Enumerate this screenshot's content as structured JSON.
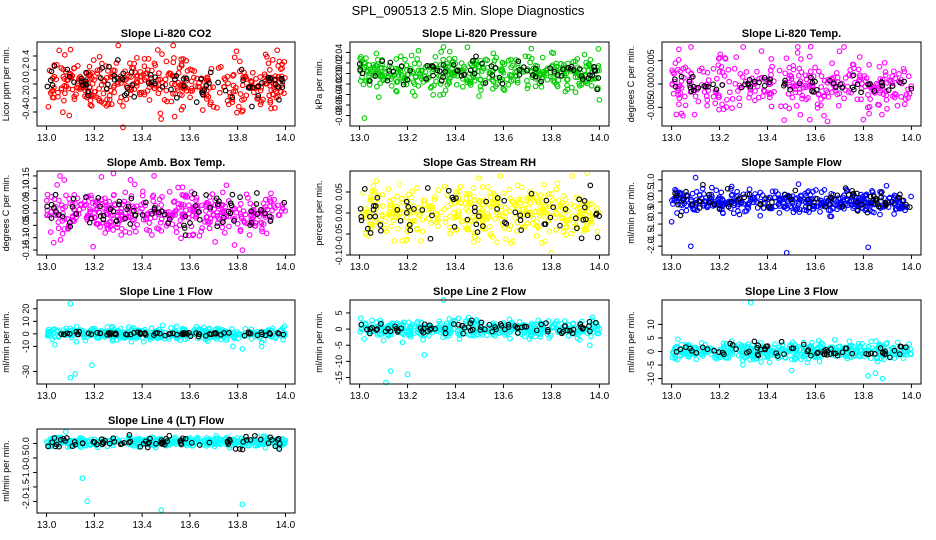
{
  "page_title": "SPL_090513  2.5 Min. Slope Diagnostics",
  "x_axis": {
    "ticks": [
      13.0,
      13.2,
      13.4,
      13.6,
      13.8,
      14.0
    ],
    "range": [
      13.0,
      14.0
    ]
  },
  "chart_data": [
    {
      "type": "scatter",
      "title": "Slope Li-820 CO2",
      "ylabel": "Licor ppm per min.",
      "ylim": [
        -0.6,
        0.6
      ],
      "yticks": [
        -0.4,
        -0.2,
        0.0,
        0.2,
        0.4
      ],
      "series": [
        {
          "color": "#ff0000",
          "count": 400,
          "center": 0.0,
          "spread": 0.18,
          "outliers": [
            [
              13.3,
              0.55
            ],
            [
              13.48,
              -0.5
            ],
            [
              13.32,
              -0.62
            ],
            [
              13.53,
              0.55
            ]
          ]
        },
        {
          "color": "#000000",
          "count": 80,
          "center": 0.0,
          "spread": 0.15,
          "outliers": []
        }
      ]
    },
    {
      "type": "scatter",
      "title": "Slope Li-820 Pressure",
      "ylabel": "kPa per min.",
      "ylim": [
        -0.1,
        0.06
      ],
      "yticks": [
        -0.08,
        -0.06,
        -0.04,
        -0.02,
        0.0,
        0.02,
        0.04
      ],
      "series": [
        {
          "color": "#00cc00",
          "count": 400,
          "center": 0.0,
          "spread": 0.016,
          "outliers": [
            [
              13.02,
              -0.085
            ],
            [
              14.0,
              -0.05
            ],
            [
              13.08,
              -0.045
            ],
            [
              13.45,
              0.05
            ]
          ]
        },
        {
          "color": "#000000",
          "count": 70,
          "center": 0.005,
          "spread": 0.012,
          "outliers": []
        }
      ]
    },
    {
      "type": "scatter",
      "title": "Slope Li-820 Temp.",
      "ylabel": "degrees C per min.",
      "ylim": [
        -0.009,
        0.009
      ],
      "yticks": [
        -0.005,
        0.0,
        0.005
      ],
      "series": [
        {
          "color": "#ff00ff",
          "count": 330,
          "center": 0.0,
          "spread": 0.003,
          "outliers": [
            [
              13.58,
              0.008
            ],
            [
              13.65,
              -0.008
            ],
            [
              13.7,
              0.007
            ]
          ]
        },
        {
          "color": "#000000",
          "count": 60,
          "center": 0.0,
          "spread": 0.001,
          "outliers": []
        }
      ]
    },
    {
      "type": "scatter",
      "title": "Slope Amb. Box Temp.",
      "ylabel": "degrees C per min.",
      "ylim": [
        -0.17,
        0.17
      ],
      "yticks": [
        -0.15,
        -0.1,
        -0.05,
        0.0,
        0.05,
        0.1,
        0.15
      ],
      "series": [
        {
          "color": "#ff00ff",
          "count": 400,
          "center": 0.0,
          "spread": 0.05,
          "outliers": [
            [
              13.28,
              0.16
            ],
            [
              13.82,
              -0.15
            ],
            [
              13.03,
              -0.12
            ],
            [
              13.45,
              0.15
            ]
          ]
        },
        {
          "color": "#000000",
          "count": 80,
          "center": 0.0,
          "spread": 0.04,
          "outliers": []
        }
      ]
    },
    {
      "type": "scatter",
      "title": "Slope Gas Stream RH",
      "ylabel": "percent per min.",
      "ylim": [
        -0.1,
        0.1
      ],
      "yticks": [
        -0.1,
        -0.05,
        0.0,
        0.05
      ],
      "series": [
        {
          "color": "#ffff00",
          "count": 400,
          "center": 0.0,
          "spread": 0.03,
          "outliers": [
            [
              13.8,
              -0.095
            ],
            [
              13.95,
              0.095
            ]
          ]
        },
        {
          "color": "#000000",
          "count": 70,
          "center": 0.0,
          "spread": 0.025,
          "outliers": []
        }
      ]
    },
    {
      "type": "scatter",
      "title": "Slope Sample Flow",
      "ylabel": "ml/min per min.",
      "ylim": [
        -2.4,
        1.4
      ],
      "yticks": [
        -2.0,
        -1.5,
        -1.0,
        -0.5,
        0.0,
        0.5,
        1.0
      ],
      "series": [
        {
          "color": "#0000ff",
          "count": 400,
          "center": 0.0,
          "spread": 0.25,
          "outliers": [
            [
              13.0,
              -0.9
            ],
            [
              13.08,
              -2.0
            ],
            [
              13.48,
              -2.3
            ],
            [
              13.82,
              -2.05
            ],
            [
              13.1,
              1.1
            ]
          ]
        },
        {
          "color": "#000000",
          "count": 70,
          "center": 0.1,
          "spread": 0.3,
          "outliers": []
        }
      ]
    },
    {
      "type": "scatter",
      "title": "Slope Line 1 Flow",
      "ylabel": "ml/min per min.",
      "ylim": [
        -40,
        27
      ],
      "yticks": [
        -30,
        -10,
        0,
        10,
        20
      ],
      "series": [
        {
          "color": "#00ffff",
          "count": 400,
          "center": 0.0,
          "spread": 2.5,
          "outliers": [
            [
              13.1,
              -35
            ],
            [
              13.12,
              -32
            ],
            [
              13.19,
              -25
            ],
            [
              13.1,
              24
            ],
            [
              13.78,
              -10
            ],
            [
              13.82,
              -12
            ],
            [
              13.9,
              -10
            ]
          ]
        },
        {
          "color": "#000000",
          "count": 80,
          "center": 0.0,
          "spread": 0.8,
          "outliers": []
        }
      ]
    },
    {
      "type": "scatter",
      "title": "Slope Line 2 Flow",
      "ylabel": "ml/min per min.",
      "ylim": [
        -17,
        9
      ],
      "yticks": [
        -15,
        -10,
        -5,
        0,
        5
      ],
      "series": [
        {
          "color": "#00ffff",
          "count": 400,
          "center": 0.0,
          "spread": 1.3,
          "outliers": [
            [
              13.11,
              -16.5
            ],
            [
              13.13,
              -13
            ],
            [
              13.2,
              -14
            ],
            [
              13.35,
              9
            ],
            [
              13.96,
              -5
            ],
            [
              13.27,
              -8
            ]
          ]
        },
        {
          "color": "#000000",
          "count": 80,
          "center": 0.3,
          "spread": 1.0,
          "outliers": []
        }
      ]
    },
    {
      "type": "scatter",
      "title": "Slope Line 3 Flow",
      "ylabel": "ml/min per min.",
      "ylim": [
        -12,
        19
      ],
      "yticks": [
        -10,
        -5,
        0,
        5,
        10
      ],
      "series": [
        {
          "color": "#00ffff",
          "count": 400,
          "center": 0.0,
          "spread": 1.6,
          "outliers": [
            [
              13.33,
              18
            ],
            [
              13.82,
              -9
            ],
            [
              13.85,
              -8
            ],
            [
              13.88,
              -10
            ],
            [
              13.5,
              -7
            ]
          ]
        },
        {
          "color": "#000000",
          "count": 70,
          "center": 0.2,
          "spread": 1.5,
          "outliers": []
        }
      ]
    },
    {
      "type": "scatter",
      "title": "Slope Line 4 (LT) Flow",
      "ylabel": "ml/min per min.",
      "ylim": [
        -2.4,
        0.5
      ],
      "yticks": [
        -2.0,
        -1.5,
        -1.0,
        -0.5,
        0.0
      ],
      "series": [
        {
          "color": "#00ffff",
          "count": 400,
          "center": 0.05,
          "spread": 0.08,
          "outliers": [
            [
              13.15,
              -1.2
            ],
            [
              13.17,
              -2.0
            ],
            [
              13.48,
              -2.3
            ],
            [
              13.82,
              -2.1
            ],
            [
              13.08,
              0.4
            ]
          ]
        },
        {
          "color": "#000000",
          "count": 80,
          "center": 0.05,
          "spread": 0.12,
          "outliers": []
        }
      ]
    }
  ]
}
